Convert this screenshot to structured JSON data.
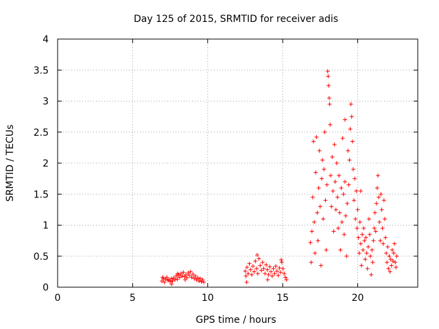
{
  "chart_data": {
    "type": "scatter",
    "title": "Day 125 of 2015, SRMTID for receiver adis",
    "xlabel": "GPS time / hours",
    "ylabel": "SRMTID / TECUs",
    "xlim": [
      0,
      24
    ],
    "ylim": [
      0,
      4
    ],
    "xticks": [
      0,
      5,
      10,
      15,
      20
    ],
    "yticks": [
      0,
      0.5,
      1,
      1.5,
      2,
      2.5,
      3,
      3.5,
      4
    ],
    "grid": true,
    "marker": "plus",
    "series": [
      {
        "name": "SRMTID",
        "color": "#ff0000",
        "points": [
          [
            6.95,
            0.1
          ],
          [
            7.05,
            0.14
          ],
          [
            7.12,
            0.08
          ],
          [
            7.2,
            0.13
          ],
          [
            7.28,
            0.16
          ],
          [
            7.35,
            0.11
          ],
          [
            7.42,
            0.12
          ],
          [
            7.5,
            0.09
          ],
          [
            7.58,
            0.14
          ],
          [
            7.66,
            0.1
          ],
          [
            7.74,
            0.15
          ],
          [
            7.82,
            0.12
          ],
          [
            7.9,
            0.18
          ],
          [
            7.98,
            0.13
          ],
          [
            8.06,
            0.2
          ],
          [
            8.14,
            0.16
          ],
          [
            8.22,
            0.22
          ],
          [
            8.3,
            0.18
          ],
          [
            8.38,
            0.24
          ],
          [
            8.46,
            0.17
          ],
          [
            8.54,
            0.2
          ],
          [
            8.62,
            0.15
          ],
          [
            8.7,
            0.23
          ],
          [
            8.78,
            0.19
          ],
          [
            8.86,
            0.25
          ],
          [
            8.94,
            0.16
          ],
          [
            9.02,
            0.21
          ],
          [
            9.1,
            0.14
          ],
          [
            9.18,
            0.18
          ],
          [
            9.26,
            0.12
          ],
          [
            9.34,
            0.15
          ],
          [
            9.42,
            0.1
          ],
          [
            9.5,
            0.14
          ],
          [
            9.58,
            0.09
          ],
          [
            9.66,
            0.12
          ],
          [
            9.74,
            0.08
          ],
          [
            7.0,
            0.16
          ],
          [
            7.6,
            0.05
          ],
          [
            8.0,
            0.22
          ],
          [
            8.5,
            0.12
          ],
          [
            12.5,
            0.26
          ],
          [
            12.55,
            0.18
          ],
          [
            12.62,
            0.32
          ],
          [
            12.7,
            0.22
          ],
          [
            12.78,
            0.38
          ],
          [
            12.86,
            0.28
          ],
          [
            12.94,
            0.2
          ],
          [
            13.02,
            0.34
          ],
          [
            13.1,
            0.25
          ],
          [
            13.18,
            0.42
          ],
          [
            13.26,
            0.3
          ],
          [
            13.34,
            0.22
          ],
          [
            13.42,
            0.46
          ],
          [
            13.5,
            0.35
          ],
          [
            13.58,
            0.27
          ],
          [
            13.66,
            0.4
          ],
          [
            13.74,
            0.3
          ],
          [
            13.82,
            0.22
          ],
          [
            13.9,
            0.36
          ],
          [
            13.98,
            0.28
          ],
          [
            14.06,
            0.2
          ],
          [
            14.14,
            0.33
          ],
          [
            14.22,
            0.25
          ],
          [
            14.3,
            0.18
          ],
          [
            14.38,
            0.3
          ],
          [
            14.46,
            0.22
          ],
          [
            14.54,
            0.34
          ],
          [
            14.62,
            0.26
          ],
          [
            14.7,
            0.19
          ],
          [
            14.78,
            0.31
          ],
          [
            14.86,
            0.24
          ],
          [
            14.94,
            0.4
          ],
          [
            15.02,
            0.3
          ],
          [
            15.1,
            0.22
          ],
          [
            15.18,
            0.16
          ],
          [
            15.26,
            0.12
          ],
          [
            12.6,
            0.08
          ],
          [
            13.3,
            0.52
          ],
          [
            14.0,
            0.12
          ],
          [
            14.9,
            0.44
          ],
          [
            16.85,
            0.72
          ],
          [
            16.9,
            0.4
          ],
          [
            16.95,
            0.9
          ],
          [
            17.0,
            1.45
          ],
          [
            17.05,
            2.35
          ],
          [
            17.1,
            1.05
          ],
          [
            17.15,
            0.55
          ],
          [
            17.2,
            1.85
          ],
          [
            17.25,
            2.42
          ],
          [
            17.3,
            1.2
          ],
          [
            17.35,
            0.75
          ],
          [
            17.4,
            1.6
          ],
          [
            17.45,
            2.2
          ],
          [
            17.5,
            1.3
          ],
          [
            17.55,
            0.35
          ],
          [
            17.6,
            1.75
          ],
          [
            17.65,
            2.05
          ],
          [
            17.7,
            1.1
          ],
          [
            17.75,
            1.9
          ],
          [
            17.8,
            2.5
          ],
          [
            17.85,
            1.4
          ],
          [
            17.9,
            0.6
          ],
          [
            17.95,
            1.65
          ],
          [
            18.0,
            3.48
          ],
          [
            18.03,
            3.4
          ],
          [
            18.06,
            3.25
          ],
          [
            18.1,
            3.05
          ],
          [
            18.13,
            2.95
          ],
          [
            18.16,
            2.62
          ],
          [
            18.2,
            1.8
          ],
          [
            18.25,
            1.3
          ],
          [
            18.3,
            2.1
          ],
          [
            18.35,
            1.55
          ],
          [
            18.4,
            0.9
          ],
          [
            18.45,
            2.3
          ],
          [
            18.5,
            1.7
          ],
          [
            18.55,
            1.25
          ],
          [
            18.6,
            2.0
          ],
          [
            18.65,
            1.45
          ],
          [
            18.7,
            0.95
          ],
          [
            18.75,
            1.8
          ],
          [
            18.8,
            1.2
          ],
          [
            18.85,
            0.6
          ],
          [
            18.9,
            1.6
          ],
          [
            18.95,
            1.05
          ],
          [
            19.0,
            2.4
          ],
          [
            19.05,
            1.5
          ],
          [
            19.1,
            0.85
          ],
          [
            19.15,
            1.7
          ],
          [
            19.2,
            1.15
          ],
          [
            19.25,
            0.5
          ],
          [
            19.3,
            1.35
          ],
          [
            19.35,
            2.2
          ],
          [
            19.4,
            1.65
          ],
          [
            19.45,
            2.05
          ],
          [
            19.5,
            2.55
          ],
          [
            19.55,
            2.95
          ],
          [
            19.6,
            2.75
          ],
          [
            19.65,
            2.35
          ],
          [
            19.7,
            1.9
          ],
          [
            19.75,
            1.4
          ],
          [
            19.8,
            1.75
          ],
          [
            19.85,
            1.1
          ],
          [
            19.9,
            1.55
          ],
          [
            19.95,
            0.95
          ],
          [
            20.0,
            1.25
          ],
          [
            20.05,
            0.8
          ],
          [
            20.1,
            0.55
          ],
          [
            20.15,
            1.05
          ],
          [
            20.2,
            0.7
          ],
          [
            20.25,
            0.35
          ],
          [
            20.3,
            0.85
          ],
          [
            20.35,
            0.6
          ],
          [
            20.4,
            0.95
          ],
          [
            20.45,
            0.75
          ],
          [
            20.5,
            0.45
          ],
          [
            20.55,
            0.8
          ],
          [
            20.6,
            0.55
          ],
          [
            20.65,
            0.3
          ],
          [
            20.7,
            0.65
          ],
          [
            20.75,
            1.1
          ],
          [
            20.8,
            0.85
          ],
          [
            20.85,
            0.5
          ],
          [
            20.9,
            0.2
          ],
          [
            20.95,
            0.6
          ],
          [
            21.0,
            0.4
          ],
          [
            21.05,
            0.75
          ],
          [
            21.1,
            0.95
          ],
          [
            21.15,
            1.2
          ],
          [
            21.2,
            0.9
          ],
          [
            21.25,
            1.35
          ],
          [
            21.3,
            1.6
          ],
          [
            21.35,
            1.8
          ],
          [
            21.4,
            1.45
          ],
          [
            21.45,
            1.05
          ],
          [
            21.5,
            0.75
          ],
          [
            21.55,
            1.5
          ],
          [
            21.6,
            1.25
          ],
          [
            21.65,
            0.95
          ],
          [
            21.7,
            0.7
          ],
          [
            21.75,
            1.4
          ],
          [
            21.8,
            1.1
          ],
          [
            21.85,
            0.8
          ],
          [
            21.9,
            0.55
          ],
          [
            21.95,
            0.4
          ],
          [
            22.0,
            0.65
          ],
          [
            22.05,
            0.3
          ],
          [
            22.1,
            0.5
          ],
          [
            22.15,
            0.25
          ],
          [
            22.2,
            0.45
          ],
          [
            22.25,
            0.35
          ],
          [
            22.3,
            0.6
          ],
          [
            22.35,
            0.42
          ],
          [
            22.4,
            0.55
          ],
          [
            22.45,
            0.7
          ],
          [
            22.5,
            0.4
          ],
          [
            22.55,
            0.32
          ],
          [
            22.6,
            0.5
          ],
          [
            20.2,
            1.55
          ],
          [
            19.15,
            2.7
          ]
        ]
      }
    ]
  }
}
